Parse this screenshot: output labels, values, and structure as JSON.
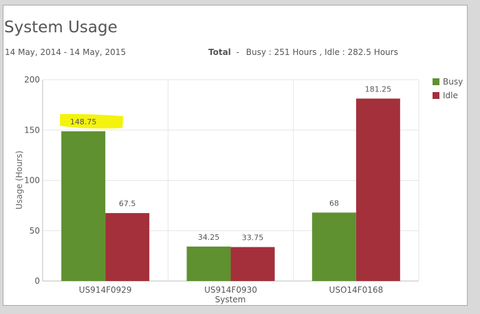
{
  "header": {
    "title": "System Usage",
    "date_range": "14 May, 2014 - 14 May, 2015",
    "total_label": "Total",
    "total_separator": "-",
    "total_text": "Busy : 251 Hours , Idle : 282.5 Hours"
  },
  "colors": {
    "busy": "#5f9130",
    "idle": "#a3303b",
    "highlight": "#f3f200"
  },
  "chart_data": {
    "type": "bar",
    "categories": [
      "US914F0929",
      "US914F0930",
      "USO14F0168"
    ],
    "series": [
      {
        "name": "Busy",
        "values": [
          148.75,
          34.25,
          68
        ]
      },
      {
        "name": "Idle",
        "values": [
          67.5,
          33.75,
          181.25
        ]
      }
    ],
    "value_labels": [
      [
        "148.75",
        "34.25",
        "68"
      ],
      [
        "67.5",
        "33.75",
        "181.25"
      ]
    ],
    "xlabel": "System",
    "ylabel": "Usage (Hours)",
    "ylim": [
      0,
      200
    ],
    "yticks": [
      0,
      50,
      100,
      150,
      200
    ],
    "grid": true,
    "legend": "right",
    "highlighted_label": "148.75"
  }
}
